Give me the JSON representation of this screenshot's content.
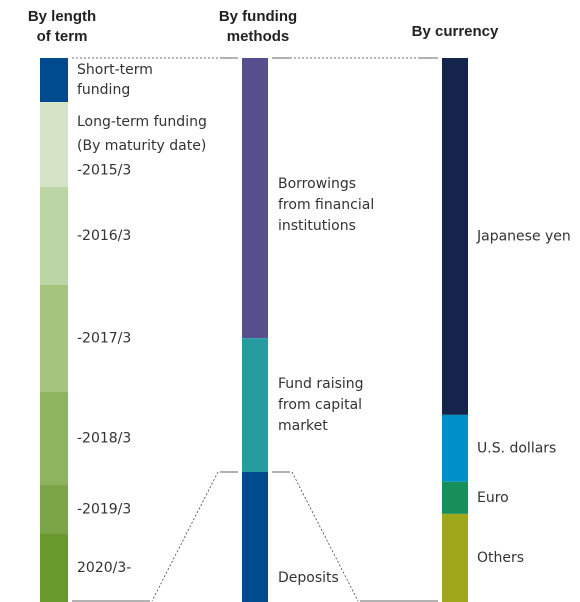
{
  "chart_data": {
    "type": "stacked_bar_100",
    "annotation": [
      "Long-term funding",
      "(By maturity date)"
    ],
    "bars": [
      {
        "title": [
          "By length",
          "of term"
        ],
        "segments": [
          {
            "name": [
              "Short-term",
              "funding"
            ],
            "value": 8.1,
            "color": "#004a8f"
          },
          {
            "name": [
              "-2015/3"
            ],
            "value": 15.6,
            "color": "#d5e3c6"
          },
          {
            "name": [
              "-2016/3"
            ],
            "value": 18.0,
            "color": "#bcd5a4"
          },
          {
            "name": [
              "-2017/3"
            ],
            "value": 19.7,
            "color": "#a5c47d"
          },
          {
            "name": [
              "-2018/3"
            ],
            "value": 17.1,
            "color": "#8fb45f"
          },
          {
            "name": [
              "-2019/3"
            ],
            "value": 9.0,
            "color": "#7aa445"
          },
          {
            "name": [
              "2020/3-"
            ],
            "value": 12.5,
            "color": "#67992c"
          }
        ]
      },
      {
        "title": [
          "By funding",
          "methods"
        ],
        "segments": [
          {
            "name": [
              "Borrowings",
              "from financial",
              "institutions"
            ],
            "value": 51.5,
            "color": "#574e90"
          },
          {
            "name": [
              "Fund raising",
              "from capital",
              "market"
            ],
            "value": 24.6,
            "color": "#269ca0"
          },
          {
            "name": [
              "Deposits"
            ],
            "value": 23.9,
            "color": "#004a8f"
          }
        ]
      },
      {
        "title": [
          "By currency"
        ],
        "segments": [
          {
            "name": [
              "Japanese yen"
            ],
            "value": 65.6,
            "color": "#14244a"
          },
          {
            "name": [
              "U.S. dollars"
            ],
            "value": 12.3,
            "color": "#0090c8"
          },
          {
            "name": [
              "Euro"
            ],
            "value": 5.9,
            "color": "#178f5a"
          },
          {
            "name": [
              "Others"
            ],
            "value": 16.2,
            "color": "#9fa81b"
          }
        ]
      }
    ]
  }
}
